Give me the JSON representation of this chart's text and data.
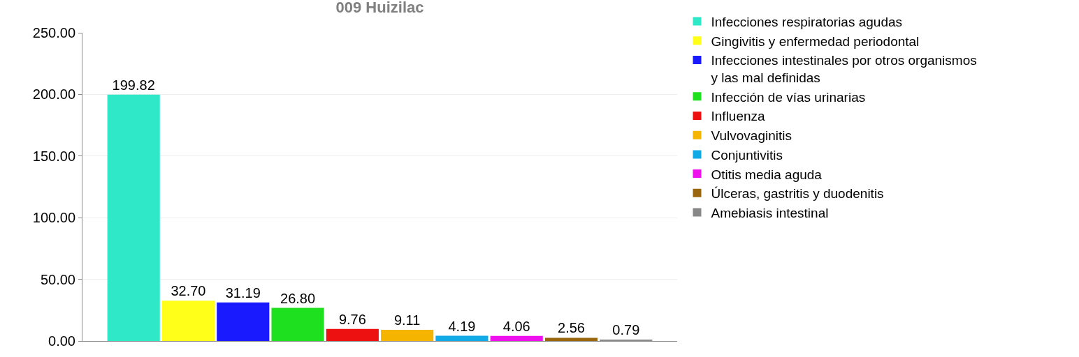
{
  "chart_data": {
    "type": "bar",
    "title": "009 Huizilac",
    "categories": [
      null
    ],
    "series": [
      {
        "name": "Infecciones respiratorias agudas",
        "color": "#2ee8c8",
        "values": [
          199.82
        ],
        "value_labels": [
          "199.82"
        ]
      },
      {
        "name": "Gingivitis y enfermedad periodontal",
        "color": "#ffff1a",
        "values": [
          32.7
        ],
        "value_labels": [
          "32.70"
        ]
      },
      {
        "name": "Infecciones intestinales por otros organismos y las mal definidas",
        "color": "#1a1aff",
        "values": [
          31.19
        ],
        "value_labels": [
          "31.19"
        ]
      },
      {
        "name": "Infección de vías urinarias",
        "color": "#1ee01e",
        "values": [
          26.8
        ],
        "value_labels": [
          "26.80"
        ]
      },
      {
        "name": "Influenza",
        "color": "#ee1111",
        "values": [
          9.76
        ],
        "value_labels": [
          "9.76"
        ]
      },
      {
        "name": "Vulvovaginitis",
        "color": "#f5b400",
        "values": [
          9.11
        ],
        "value_labels": [
          "9.11"
        ]
      },
      {
        "name": "Conjuntivitis",
        "color": "#11aae6",
        "values": [
          4.19
        ],
        "value_labels": [
          "4.19"
        ]
      },
      {
        "name": "Otitis media aguda",
        "color": "#ee11ee",
        "values": [
          4.06
        ],
        "value_labels": [
          "4.06"
        ]
      },
      {
        "name": "Úlceras, gastritis y duodenitis",
        "color": "#99660f",
        "values": [
          2.56
        ],
        "value_labels": [
          "2.56"
        ]
      },
      {
        "name": "Amebiasis intestinal",
        "color": "#888888",
        "values": [
          0.79
        ],
        "value_labels": [
          "0.79"
        ]
      }
    ],
    "ylim": [
      0,
      250
    ],
    "yticks": [
      {
        "value": 0,
        "label": "0.00"
      },
      {
        "value": 50,
        "label": "50.00"
      },
      {
        "value": 100,
        "label": "100.00"
      },
      {
        "value": 150,
        "label": "150.00"
      },
      {
        "value": 200,
        "label": "200.00"
      },
      {
        "value": 250,
        "label": "250.00"
      }
    ],
    "grid": "y",
    "legend": "right"
  }
}
